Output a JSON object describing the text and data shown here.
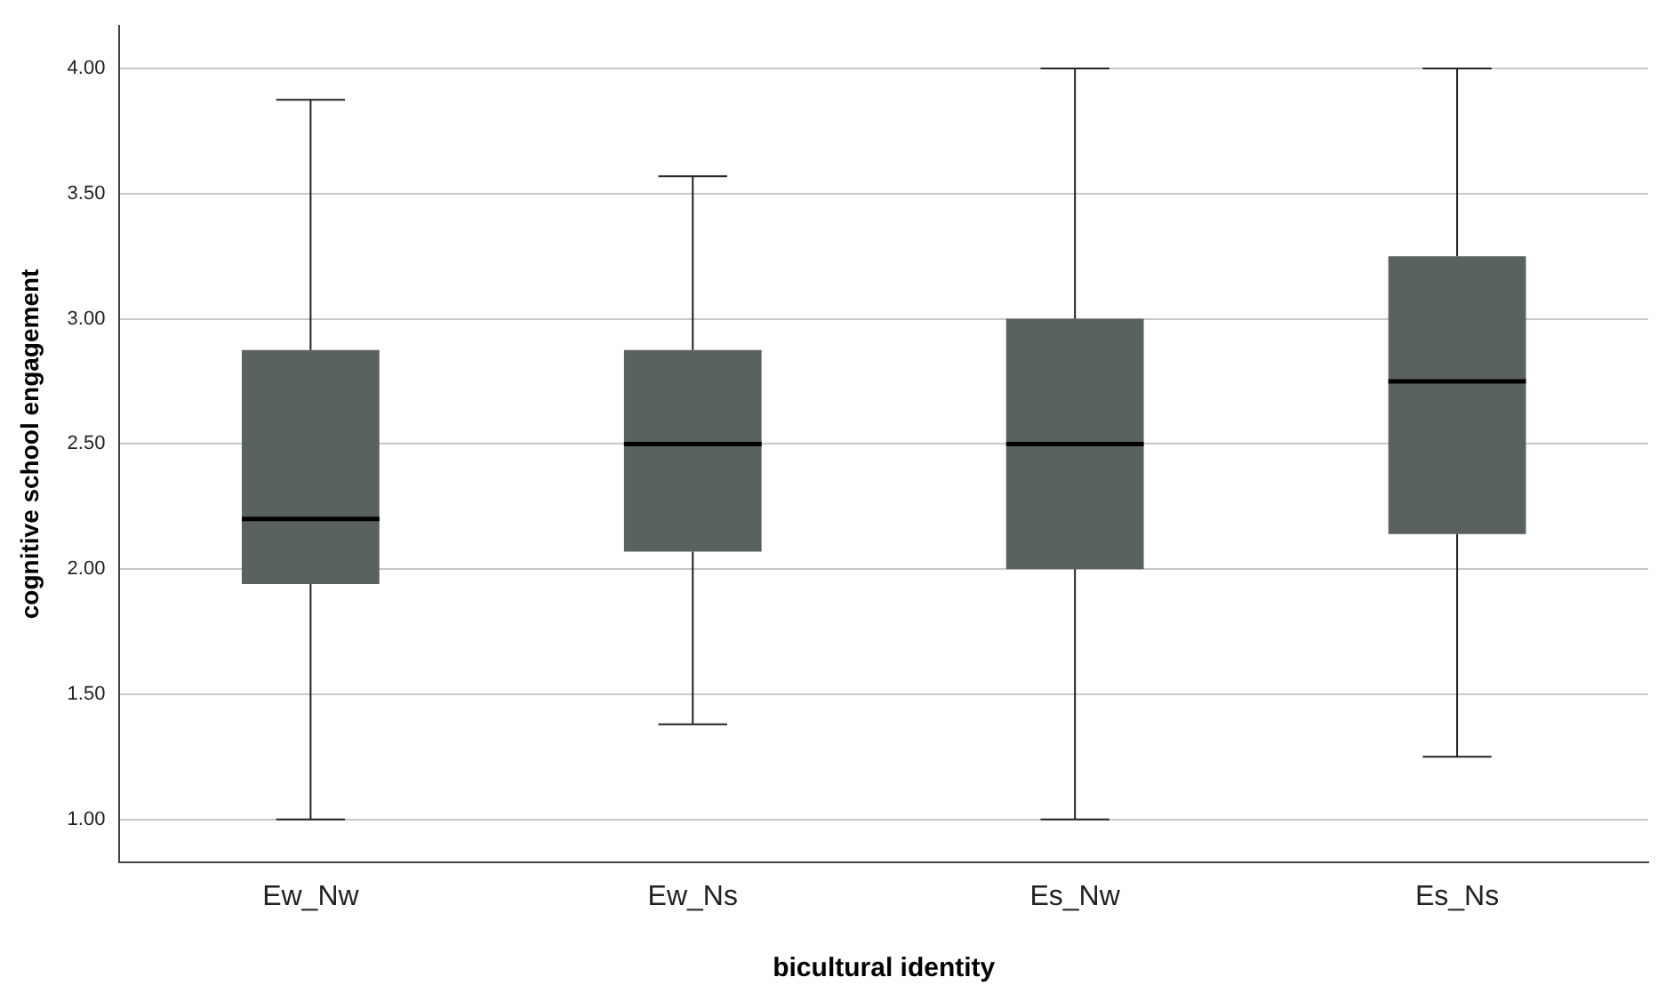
{
  "chart_data": {
    "type": "box",
    "xlabel": "bicultural identity",
    "ylabel": "cognitive school engagement",
    "categories": [
      "Ew_Nw",
      "Ew_Ns",
      "Es_Nw",
      "Es_Ns"
    ],
    "boxes": [
      {
        "low": 1.0,
        "q1": 1.94,
        "median": 2.2,
        "q3": 2.875,
        "high": 3.875
      },
      {
        "low": 1.38,
        "q1": 2.07,
        "median": 2.5,
        "q3": 2.875,
        "high": 3.57
      },
      {
        "low": 1.0,
        "q1": 2.0,
        "median": 2.5,
        "q3": 3.0,
        "high": 4.0
      },
      {
        "low": 1.25,
        "q1": 2.14,
        "median": 2.75,
        "q3": 3.25,
        "high": 4.0
      }
    ],
    "color": "#5a625e",
    "ylim": [
      0.83,
      4.17
    ],
    "yticks": [
      {
        "value": 1,
        "label": "1.00"
      },
      {
        "value": 1.5,
        "label": "1.50"
      },
      {
        "value": 2,
        "label": "2.00"
      },
      {
        "value": 2.5,
        "label": "2.50"
      },
      {
        "value": 3,
        "label": "3.00"
      },
      {
        "value": 3.5,
        "label": "3.50"
      },
      {
        "value": 4,
        "label": "4.00"
      }
    ],
    "grid": "y",
    "legend": false
  }
}
